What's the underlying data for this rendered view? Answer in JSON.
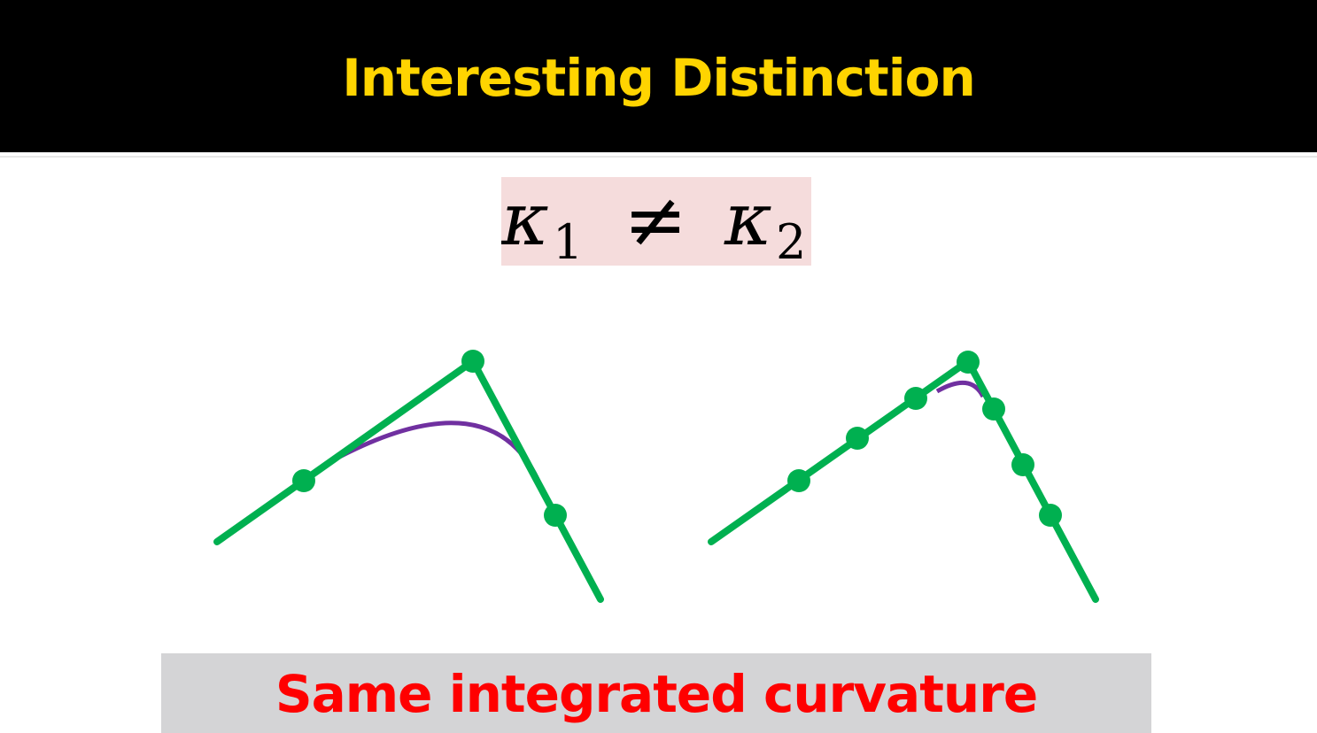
{
  "slide": {
    "title": "Interesting Distinction",
    "formula": {
      "left_symbol": "κ",
      "left_subscript": "1",
      "operator": "≠",
      "right_symbol": "κ",
      "right_subscript": "2"
    },
    "caption": "Same integrated curvature"
  },
  "colors": {
    "title_bar": "#000000",
    "title_text": "#ffd400",
    "formula_background": "#f5dcdc",
    "polyline": "#00b050",
    "smooth_curve": "#7030a0",
    "caption_background": "#d4d4d6",
    "caption_text": "#ff0000"
  }
}
